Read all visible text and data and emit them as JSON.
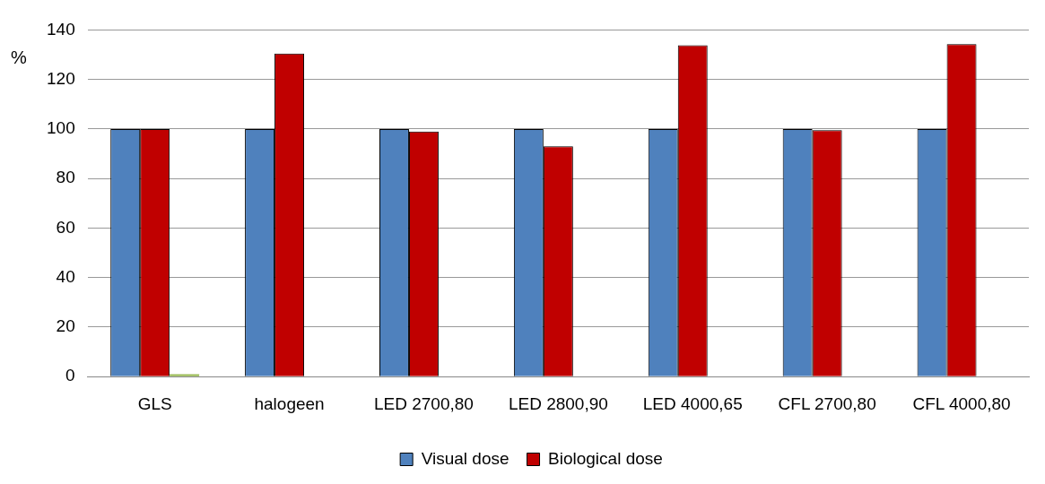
{
  "chart_data": {
    "type": "bar",
    "ylabel": "%",
    "categories": [
      "GLS",
      "halogeen",
      "LED 2700,80",
      "LED 2800,90",
      "LED 4000,65",
      "CFL 2700,80",
      "CFL 4000,80"
    ],
    "series": [
      {
        "name": "Visual dose",
        "color": "#4f81bd",
        "values": [
          100,
          100,
          100,
          100,
          100,
          100,
          100
        ]
      },
      {
        "name": "Biological dose",
        "color": "#c00000",
        "values": [
          100,
          130.5,
          99,
          93,
          133.8,
          99.5,
          134.3
        ]
      },
      {
        "color": "#9bbb59",
        "values": [
          1,
          null,
          null,
          null,
          null,
          null,
          null
        ]
      }
    ],
    "ylim": [
      0,
      140
    ],
    "yticks": [
      0,
      20,
      40,
      60,
      80,
      100,
      120,
      140
    ],
    "grid": "y",
    "legend": "bottom"
  }
}
